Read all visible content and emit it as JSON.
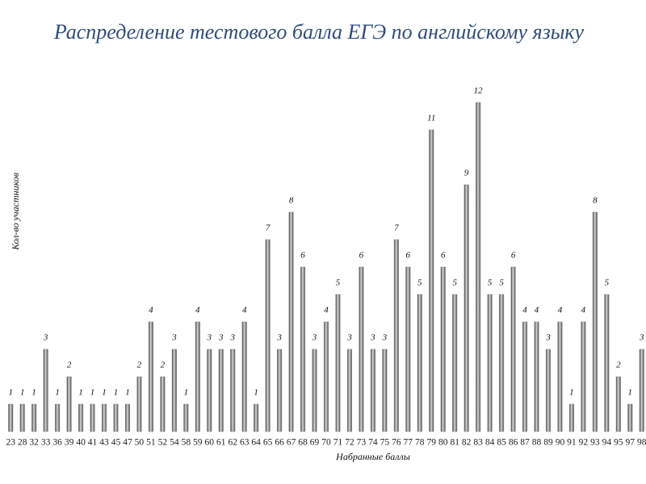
{
  "chart_data": {
    "type": "bar",
    "title": "Распределение тестового балла ЕГЭ по английскому языку",
    "x_label": "Набранные баллы",
    "y_label": "Кол-во участников",
    "categories": [
      "23",
      "28",
      "32",
      "33",
      "36",
      "39",
      "40",
      "41",
      "43",
      "45",
      "47",
      "50",
      "51",
      "52",
      "54",
      "58",
      "59",
      "60",
      "61",
      "62",
      "63",
      "64",
      "65",
      "66",
      "67",
      "68",
      "69",
      "70",
      "71",
      "72",
      "73",
      "74",
      "75",
      "76",
      "77",
      "78",
      "79",
      "80",
      "81",
      "82",
      "83",
      "84",
      "85",
      "86",
      "87",
      "88",
      "89",
      "90",
      "91",
      "92",
      "93",
      "94",
      "95",
      "97",
      "98"
    ],
    "values": [
      1,
      1,
      1,
      3,
      1,
      2,
      1,
      1,
      1,
      1,
      1,
      2,
      4,
      2,
      3,
      1,
      4,
      3,
      3,
      3,
      4,
      1,
      7,
      3,
      8,
      6,
      3,
      4,
      5,
      3,
      6,
      3,
      3,
      7,
      6,
      5,
      11,
      6,
      5,
      9,
      12,
      5,
      5,
      6,
      4,
      4,
      3,
      4,
      1,
      4,
      8,
      5,
      2,
      1,
      3
    ],
    "ylim": [
      0,
      12
    ],
    "color": "#8c8c8c"
  }
}
